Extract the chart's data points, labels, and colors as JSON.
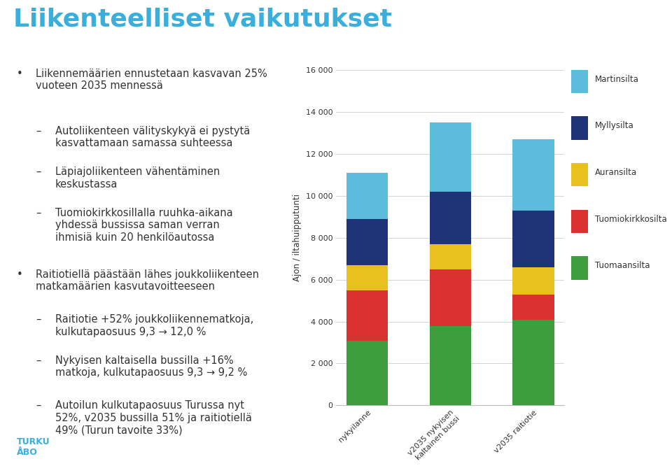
{
  "title": "Liikenteelliset vaikutukset",
  "ylabel": "Ajon / iltahuipputunti",
  "ylim": [
    0,
    16000
  ],
  "yticks": [
    0,
    2000,
    4000,
    6000,
    8000,
    10000,
    12000,
    14000,
    16000
  ],
  "ytick_labels": [
    "0",
    "2 000",
    "4 000",
    "6 000",
    "8 000",
    "10 000",
    "12 000",
    "14 000",
    "16 000"
  ],
  "categories": [
    "nykyilanne",
    "v2035 nykyisen\nkaltainen bussi",
    "v2035 raitiotie"
  ],
  "series": [
    {
      "name": "Tuomaansilta",
      "color": "#3e9e3e",
      "values": [
        3100,
        3800,
        4100
      ]
    },
    {
      "name": "Tuomiokirkkosilta",
      "color": "#d93030",
      "values": [
        2400,
        2700,
        1200
      ]
    },
    {
      "name": "Auransilta",
      "color": "#e8c020",
      "values": [
        1200,
        1200,
        1300
      ]
    },
    {
      "name": "Myllysilta",
      "color": "#1f3478",
      "values": [
        2200,
        2500,
        2700
      ]
    },
    {
      "name": "Martinsilta",
      "color": "#5bbcdc",
      "values": [
        2200,
        3300,
        3400
      ]
    }
  ],
  "background_color": "#ffffff",
  "text_color": "#333333",
  "cyan_color": "#3aafdc",
  "title_fontsize": 26,
  "body_fontsize": 10.5,
  "bullet1_main": "Liikennemäärien ennustetaan kasvavan 25%\nvuoteen 2035 mennessä",
  "bullet1_subs": [
    "Autoliikenteen välityskykyä ei pysty tä\nkasvattamaan samassa suhteessa",
    "Läpiajoliikenteen vähentäminen\nkeskustassa",
    "Tuomiokirkkosillalla ruuhka-aikana\nyhdessä bussissa saman verran\nihmi siä kuin 20 henkilöautossa"
  ],
  "bullet2_main": "Raitiotiellä päästään lähes joukkoliikenteen\nmatkamäärien kasvutavoitteeseen",
  "bullet2_subs": [
    "Raitiotie +52% joukkoliikennematkoja,\nkulkutapaosuus 9,3 → 12,0 %",
    "Nykyisen kaltaisella bussilla +16%\nmatkoja, kulkutapaosuus 9,3 → 9,2 %",
    "Autoilun kulkutapaosuus Turussa nyt\n52%, v2035 bussilla 51% ja raitiotiellä\n49% (Turun tavoite 33%)"
  ]
}
